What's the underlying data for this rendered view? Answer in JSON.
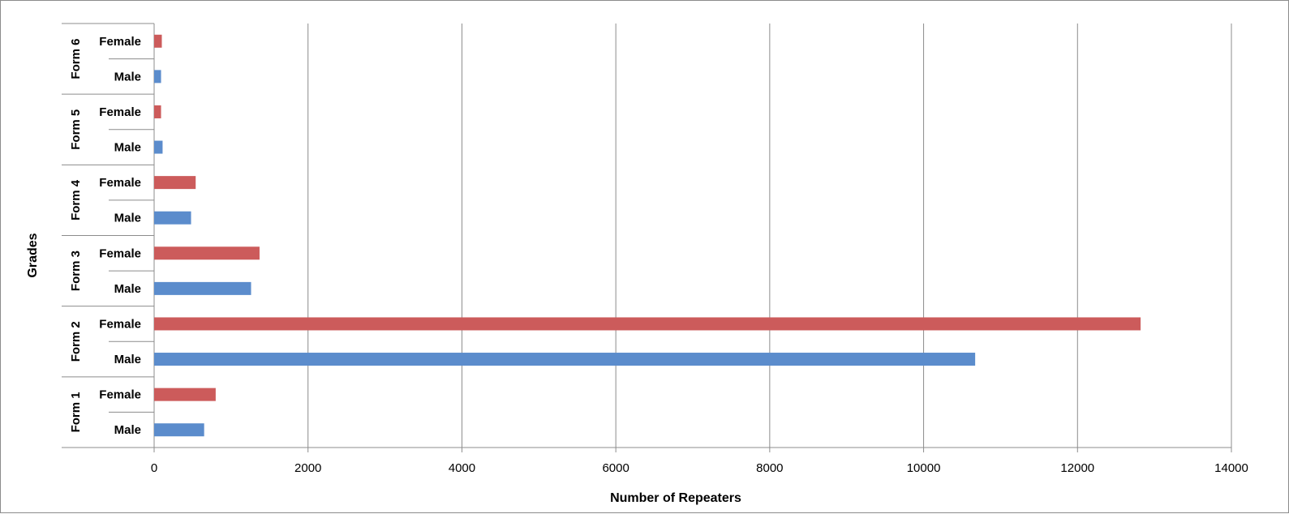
{
  "chart_data": {
    "type": "bar",
    "orientation": "horizontal",
    "xlabel": "Number of Repeaters",
    "ylabel": "Grades",
    "xlim": [
      0,
      14000
    ],
    "xticks": [
      0,
      2000,
      4000,
      6000,
      8000,
      10000,
      12000,
      14000
    ],
    "grid": true,
    "legend": "none",
    "groups": [
      {
        "name": "Form 1",
        "bars": [
          {
            "label": "Male",
            "value": 650,
            "color": "#5b8ccc"
          },
          {
            "label": "Female",
            "value": 800,
            "color": "#cc5b5b"
          }
        ]
      },
      {
        "name": "Form 2",
        "bars": [
          {
            "label": "Male",
            "value": 10670,
            "color": "#5b8ccc"
          },
          {
            "label": "Female",
            "value": 12820,
            "color": "#cc5b5b"
          }
        ]
      },
      {
        "name": "Form 3",
        "bars": [
          {
            "label": "Male",
            "value": 1260,
            "color": "#5b8ccc"
          },
          {
            "label": "Female",
            "value": 1370,
            "color": "#cc5b5b"
          }
        ]
      },
      {
        "name": "Form 4",
        "bars": [
          {
            "label": "Male",
            "value": 480,
            "color": "#5b8ccc"
          },
          {
            "label": "Female",
            "value": 540,
            "color": "#cc5b5b"
          }
        ]
      },
      {
        "name": "Form 5",
        "bars": [
          {
            "label": "Male",
            "value": 110,
            "color": "#5b8ccc"
          },
          {
            "label": "Female",
            "value": 90,
            "color": "#cc5b5b"
          }
        ]
      },
      {
        "name": "Form 6",
        "bars": [
          {
            "label": "Male",
            "value": 90,
            "color": "#5b8ccc"
          },
          {
            "label": "Female",
            "value": 100,
            "color": "#cc5b5b"
          }
        ]
      }
    ]
  }
}
